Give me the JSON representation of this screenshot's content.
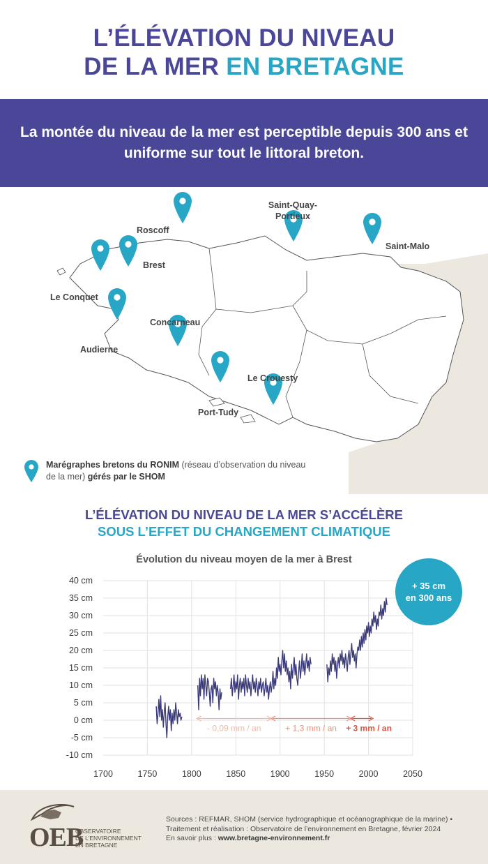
{
  "header": {
    "title_line1": "L’ÉLÉVATION DU NIVEAU",
    "title_line2a": "DE LA MER ",
    "title_line2b": "EN BRETAGNE"
  },
  "banner": {
    "text": "La montée du niveau de la mer est perceptible depuis 300 ans et uniforme sur tout le littoral breton."
  },
  "map": {
    "pins": [
      {
        "name": "Roscoff"
      },
      {
        "name": "Saint-Quay-"
      },
      {
        "name": "Portieux"
      },
      {
        "name": "Saint-Malo"
      },
      {
        "name": "Brest"
      },
      {
        "name": "Le Conquet"
      },
      {
        "name": "Concarneau"
      },
      {
        "name": "Audierne"
      },
      {
        "name": "Le Crouesty"
      },
      {
        "name": "Port-Tudy"
      }
    ],
    "colors": {
      "pin": "#27a6c6",
      "land": "#ffffff",
      "outside": "#ece8e0",
      "border": "#555555"
    }
  },
  "legend": {
    "bold1": "Marégraphes bretons du RONIM",
    "text1": " (réseau d’observation du niveau de la mer) ",
    "bold2": "gérés par le SHOM"
  },
  "subtitle": {
    "line1": "L’ÉLÉVATION DU NIVEAU DE LA MER S’ACCÉLÈRE",
    "line2": "SOUS L’EFFET DU CHANGEMENT CLIMATIQUE"
  },
  "chart_data": {
    "type": "line",
    "title": "Évolution du niveau moyen de la mer à Brest",
    "xlabel": "",
    "ylabel": "",
    "xlim": [
      1700,
      2050
    ],
    "ylim": [
      -10,
      40
    ],
    "x_ticks": [
      "1700",
      "1750",
      "1800",
      "1850",
      "1900",
      "1950",
      "2000",
      "2050"
    ],
    "y_ticks": [
      "40 cm",
      "35 cm",
      "30 cm",
      "25 cm",
      "20 cm",
      "15 cm",
      "10 cm",
      "5 cm",
      "0 cm",
      "-5 cm",
      "-10 cm"
    ],
    "grid": true,
    "series_color": "#3b3a7a",
    "series": [
      {
        "segments": [
          [
            [
              1760,
              4
            ],
            [
              1761,
              -1
            ],
            [
              1762,
              2
            ],
            [
              1763,
              6
            ],
            [
              1764,
              1
            ],
            [
              1765,
              7
            ],
            [
              1766,
              0
            ],
            [
              1767,
              3
            ],
            [
              1768,
              -2
            ],
            [
              1769,
              2
            ],
            [
              1770,
              5
            ],
            [
              1771,
              -1
            ],
            [
              1772,
              -5
            ],
            [
              1773,
              1
            ],
            [
              1774,
              4
            ],
            [
              1775,
              0
            ],
            [
              1776,
              3
            ],
            [
              1777,
              -3
            ],
            [
              1778,
              2
            ],
            [
              1779,
              -1
            ],
            [
              1780,
              3
            ],
            [
              1781,
              0
            ],
            [
              1782,
              5
            ],
            [
              1783,
              2
            ],
            [
              1784,
              -1
            ],
            [
              1785,
              3
            ],
            [
              1786,
              1
            ],
            [
              1787,
              2
            ],
            [
              1788,
              0
            ],
            [
              1789,
              1
            ]
          ],
          [
            [
              1807,
              10
            ],
            [
              1808,
              3
            ],
            [
              1809,
              12
            ],
            [
              1810,
              7
            ],
            [
              1811,
              13
            ],
            [
              1812,
              9
            ],
            [
              1813,
              12
            ],
            [
              1814,
              6
            ],
            [
              1815,
              13
            ],
            [
              1816,
              10
            ],
            [
              1817,
              7
            ],
            [
              1818,
              12
            ],
            [
              1819,
              11
            ],
            [
              1820,
              8
            ],
            [
              1821,
              4
            ],
            [
              1822,
              9
            ],
            [
              1823,
              10
            ],
            [
              1824,
              5
            ],
            [
              1825,
              12
            ],
            [
              1826,
              9
            ],
            [
              1827,
              11
            ],
            [
              1828,
              7
            ],
            [
              1829,
              10
            ],
            [
              1830,
              8
            ],
            [
              1831,
              3
            ],
            [
              1832,
              9
            ],
            [
              1833,
              6
            ],
            [
              1834,
              8
            ]
          ],
          [
            [
              1844,
              9
            ],
            [
              1845,
              12
            ],
            [
              1846,
              7
            ],
            [
              1847,
              10
            ],
            [
              1848,
              13
            ],
            [
              1849,
              8
            ],
            [
              1850,
              11
            ],
            [
              1851,
              9
            ],
            [
              1852,
              13
            ],
            [
              1853,
              6
            ],
            [
              1854,
              10
            ],
            [
              1855,
              12
            ],
            [
              1856,
              8
            ],
            [
              1857,
              11
            ],
            [
              1858,
              9
            ],
            [
              1859,
              12
            ],
            [
              1860,
              7
            ],
            [
              1861,
              13
            ],
            [
              1862,
              10
            ],
            [
              1863,
              8
            ],
            [
              1864,
              12
            ],
            [
              1865,
              9
            ],
            [
              1866,
              11
            ],
            [
              1867,
              7
            ],
            [
              1868,
              10
            ],
            [
              1869,
              13
            ],
            [
              1870,
              9
            ],
            [
              1871,
              11
            ],
            [
              1872,
              8
            ],
            [
              1873,
              12
            ],
            [
              1874,
              10
            ],
            [
              1875,
              7
            ],
            [
              1876,
              11
            ],
            [
              1877,
              9
            ],
            [
              1878,
              12
            ],
            [
              1879,
              8
            ],
            [
              1880,
              10
            ],
            [
              1881,
              11
            ],
            [
              1882,
              7
            ],
            [
              1883,
              9
            ],
            [
              1884,
              12
            ],
            [
              1885,
              8
            ],
            [
              1886,
              10
            ],
            [
              1887,
              6
            ],
            [
              1888,
              9
            ],
            [
              1889,
              11
            ],
            [
              1890,
              8
            ],
            [
              1891,
              10
            ],
            [
              1892,
              14
            ],
            [
              1893,
              9
            ],
            [
              1894,
              12
            ],
            [
              1895,
              10
            ],
            [
              1896,
              15
            ],
            [
              1897,
              12
            ],
            [
              1898,
              18
            ],
            [
              1899,
              14
            ],
            [
              1900,
              16
            ],
            [
              1901,
              13
            ],
            [
              1902,
              17
            ],
            [
              1903,
              20
            ],
            [
              1904,
              15
            ],
            [
              1905,
              19
            ],
            [
              1906,
              14
            ],
            [
              1907,
              17
            ],
            [
              1908,
              13
            ],
            [
              1909,
              15
            ],
            [
              1910,
              11
            ],
            [
              1911,
              14
            ],
            [
              1912,
              9
            ],
            [
              1913,
              16
            ],
            [
              1914,
              12
            ],
            [
              1915,
              15
            ],
            [
              1916,
              18
            ],
            [
              1917,
              13
            ],
            [
              1918,
              16
            ],
            [
              1919,
              12
            ],
            [
              1920,
              10
            ],
            [
              1921,
              14
            ],
            [
              1922,
              17
            ],
            [
              1923,
              12
            ],
            [
              1924,
              15
            ],
            [
              1925,
              19
            ],
            [
              1926,
              14
            ],
            [
              1927,
              17
            ],
            [
              1928,
              13
            ],
            [
              1929,
              16
            ],
            [
              1930,
              19
            ],
            [
              1931,
              15
            ],
            [
              1932,
              17
            ],
            [
              1933,
              14
            ],
            [
              1934,
              18
            ],
            [
              1935,
              16
            ]
          ],
          [
            [
              1953,
              16
            ],
            [
              1954,
              11
            ],
            [
              1955,
              15
            ],
            [
              1956,
              13
            ],
            [
              1957,
              17
            ],
            [
              1958,
              14
            ],
            [
              1959,
              19
            ],
            [
              1960,
              16
            ],
            [
              1961,
              18
            ],
            [
              1962,
              14
            ],
            [
              1963,
              17
            ],
            [
              1964,
              12
            ],
            [
              1965,
              16
            ],
            [
              1966,
              18
            ],
            [
              1967,
              15
            ],
            [
              1968,
              19
            ],
            [
              1969,
              17
            ],
            [
              1970,
              20
            ],
            [
              1971,
              16
            ],
            [
              1972,
              18
            ],
            [
              1973,
              15
            ],
            [
              1974,
              19
            ],
            [
              1975,
              17
            ],
            [
              1976,
              14
            ],
            [
              1977,
              18
            ],
            [
              1978,
              20
            ],
            [
              1979,
              16
            ],
            [
              1980,
              19
            ],
            [
              1981,
              22
            ],
            [
              1982,
              18
            ],
            [
              1983,
              20
            ],
            [
              1984,
              17
            ],
            [
              1985,
              19
            ],
            [
              1986,
              15
            ],
            [
              1987,
              19
            ],
            [
              1988,
              21
            ],
            [
              1989,
              20
            ],
            [
              1990,
              23
            ],
            [
              1991,
              20
            ],
            [
              1992,
              24
            ],
            [
              1993,
              21
            ],
            [
              1994,
              25
            ],
            [
              1995,
              22
            ],
            [
              1996,
              26
            ],
            [
              1997,
              23
            ],
            [
              1998,
              27
            ],
            [
              1999,
              25
            ],
            [
              2000,
              28
            ],
            [
              2001,
              24
            ],
            [
              2002,
              27
            ],
            [
              2003,
              25
            ],
            [
              2004,
              29
            ],
            [
              2005,
              27
            ],
            [
              2006,
              31
            ],
            [
              2007,
              28
            ],
            [
              2008,
              30
            ],
            [
              2009,
              26
            ],
            [
              2010,
              29
            ],
            [
              2011,
              27
            ],
            [
              2012,
              31
            ],
            [
              2013,
              30
            ],
            [
              2014,
              33
            ],
            [
              2015,
              29
            ],
            [
              2016,
              32
            ],
            [
              2017,
              30
            ],
            [
              2018,
              34
            ],
            [
              2019,
              31
            ],
            [
              2020,
              35
            ],
            [
              2021,
              33
            ]
          ]
        ]
      }
    ],
    "periods": [
      {
        "label": "- 0,09 mm / an",
        "x_start": 1806,
        "x_end": 1890,
        "color": "#f2b8a6"
      },
      {
        "label": "+ 1,3 mm / an",
        "x_start": 1890,
        "x_end": 1980,
        "color": "#e8917b"
      },
      {
        "label": "+ 3 mm / an",
        "x_start": 1980,
        "x_end": 2005,
        "color": "#d9573f"
      }
    ]
  },
  "badge": {
    "line1": "+ 35 cm",
    "line2": "en 300 ans"
  },
  "footer": {
    "logo": "OEB",
    "logo_sub1": "Observatoire",
    "logo_sub2": "de l’environnement",
    "logo_sub3": "en Bretagne",
    "sources_line1": "Sources : REFMAR, SHOM (service hydrographique et océanographique de la marine) •",
    "sources_line2": "Traitement et réalisation : Observatoire de l’environnement en Bretagne, février 2024",
    "sources_line3_prefix": "En savoir plus : ",
    "sources_line3_link": "www.bretagne-environnement.fr"
  }
}
